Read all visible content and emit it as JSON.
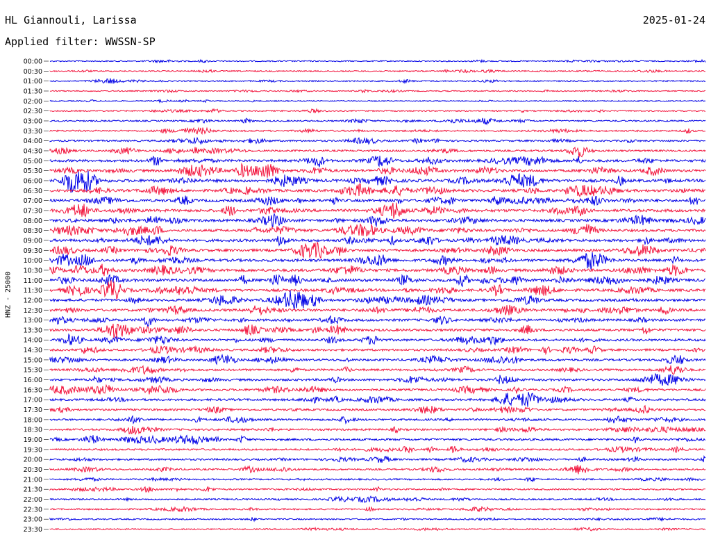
{
  "header": {
    "station": "HL Giannouli, Larissa",
    "date": "2025-01-24",
    "filter": "Applied filter: WWSSN-SP"
  },
  "chart_data": {
    "type": "line",
    "ylabel": "HNZ - 25000",
    "line_colors": [
      "#0000e6",
      "#f2143c"
    ],
    "rows": [
      "00:00",
      "00:30",
      "01:00",
      "01:30",
      "02:00",
      "02:30",
      "03:00",
      "03:30",
      "04:00",
      "04:30",
      "05:00",
      "05:30",
      "06:00",
      "06:30",
      "07:00",
      "07:30",
      "08:00",
      "08:30",
      "09:00",
      "09:30",
      "10:00",
      "10:30",
      "11:00",
      "11:30",
      "12:00",
      "12:30",
      "13:00",
      "13:30",
      "14:00",
      "14:30",
      "15:00",
      "15:30",
      "16:00",
      "16:30",
      "17:00",
      "17:30",
      "18:00",
      "18:30",
      "19:00",
      "19:30",
      "20:00",
      "20:30",
      "21:00",
      "21:30",
      "22:00",
      "22:30",
      "23:00",
      "23:30"
    ],
    "amplitude_level": [
      0.25,
      0.3,
      0.3,
      0.25,
      0.25,
      0.3,
      0.4,
      0.45,
      0.5,
      0.55,
      0.8,
      0.85,
      1.0,
      0.9,
      0.9,
      0.95,
      0.9,
      0.85,
      0.9,
      0.9,
      0.9,
      0.95,
      1.0,
      0.9,
      0.85,
      0.85,
      0.8,
      0.8,
      0.75,
      0.7,
      0.7,
      0.65,
      0.7,
      0.7,
      0.7,
      0.6,
      0.6,
      0.6,
      0.65,
      0.55,
      0.55,
      0.5,
      0.45,
      0.45,
      0.4,
      0.4,
      0.35,
      0.3
    ]
  }
}
